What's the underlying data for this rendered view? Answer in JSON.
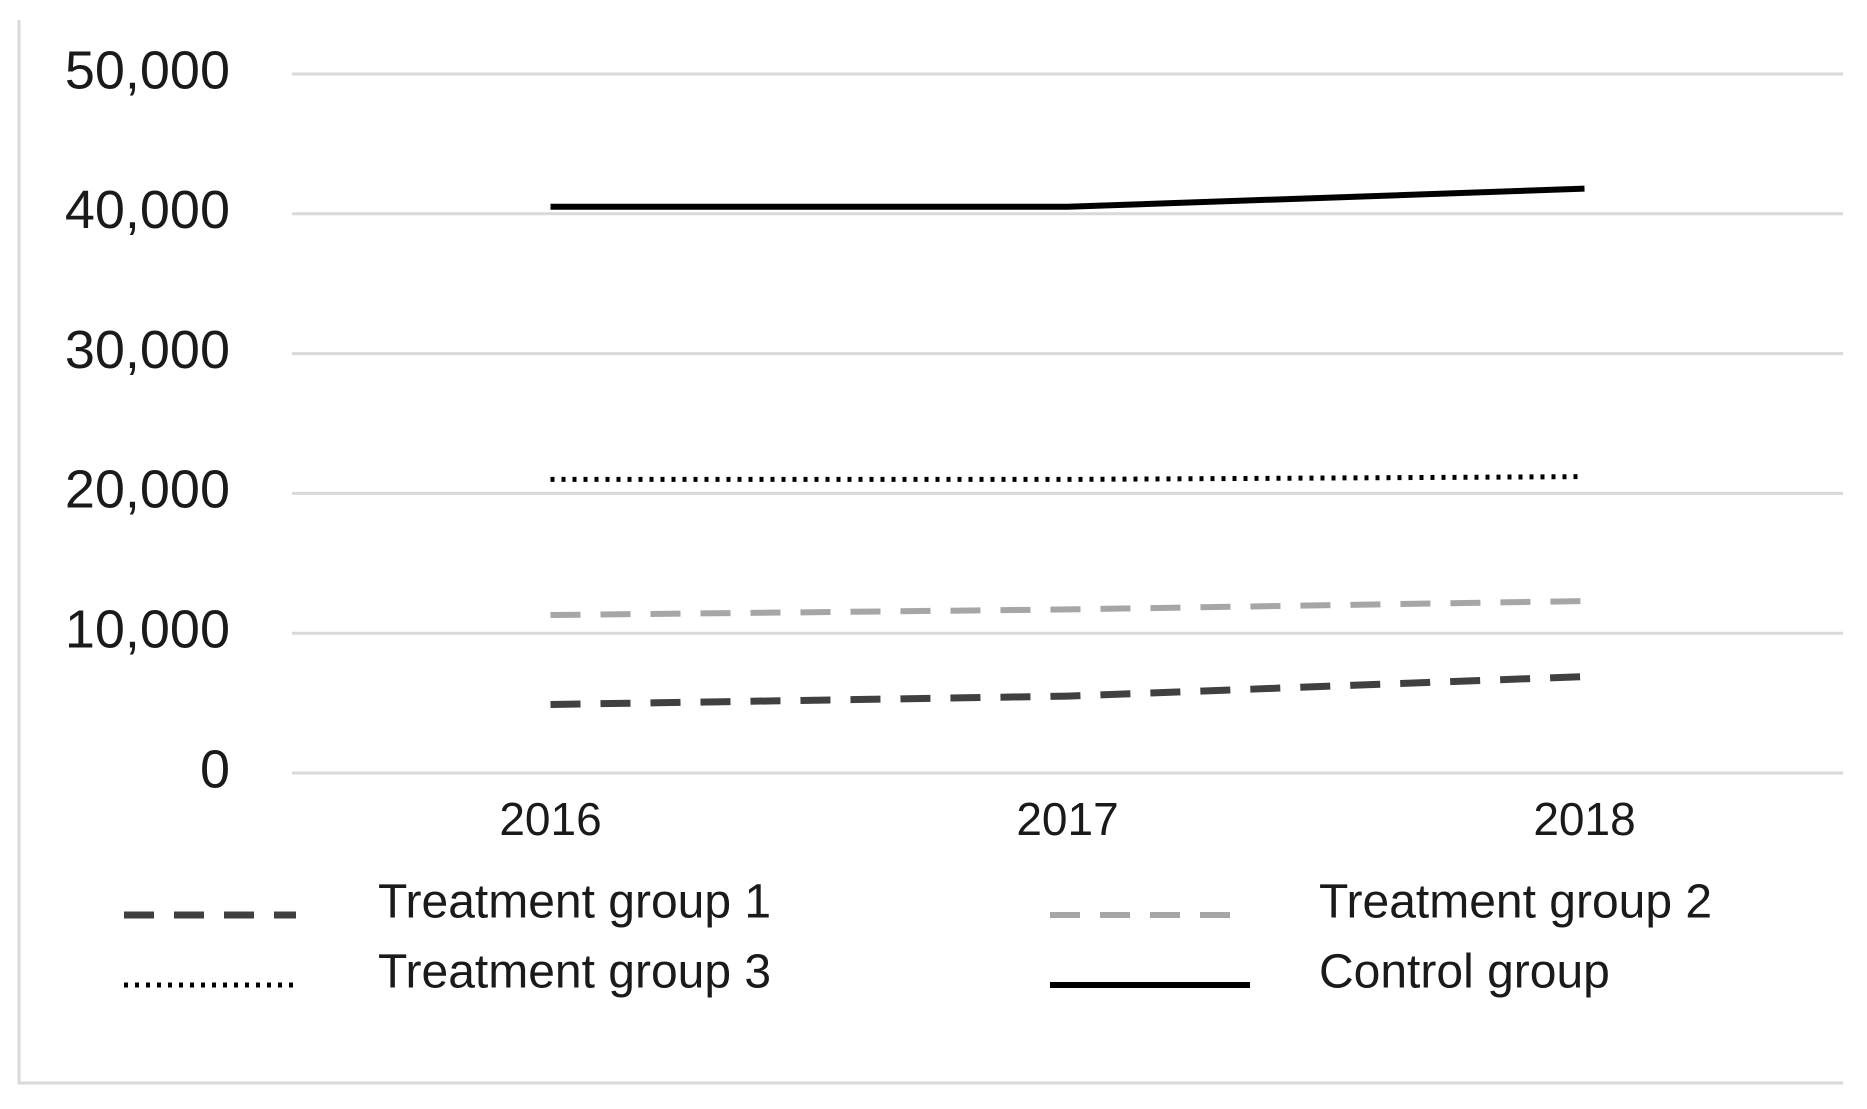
{
  "chart_data": {
    "type": "line",
    "categories": [
      "2016",
      "2017",
      "2018"
    ],
    "series": [
      {
        "name": "Treatment group 1",
        "color": "#404040",
        "line_style": "dashed",
        "values": [
          4900,
          5500,
          6900
        ]
      },
      {
        "name": "Treatment group 2",
        "color": "#a6a6a6",
        "line_style": "dashed",
        "values": [
          11300,
          11700,
          12300
        ]
      },
      {
        "name": "Treatment group 3",
        "color": "#000000",
        "line_style": "dotted",
        "values": [
          21000,
          21000,
          21200
        ]
      },
      {
        "name": "Control group",
        "color": "#000000",
        "line_style": "solid",
        "values": [
          40500,
          40500,
          41800
        ]
      }
    ],
    "ylim": [
      0,
      50000
    ],
    "yticks": [
      0,
      {
        "value": 10000,
        "label": "10,000"
      },
      {
        "value": 20000,
        "label": "20,000"
      },
      {
        "value": 30000,
        "label": "30,000"
      },
      {
        "value": 40000,
        "label": "40,000"
      },
      {
        "value": 50000,
        "label": "50,000"
      }
    ],
    "grid": true,
    "legend": "bottom"
  }
}
